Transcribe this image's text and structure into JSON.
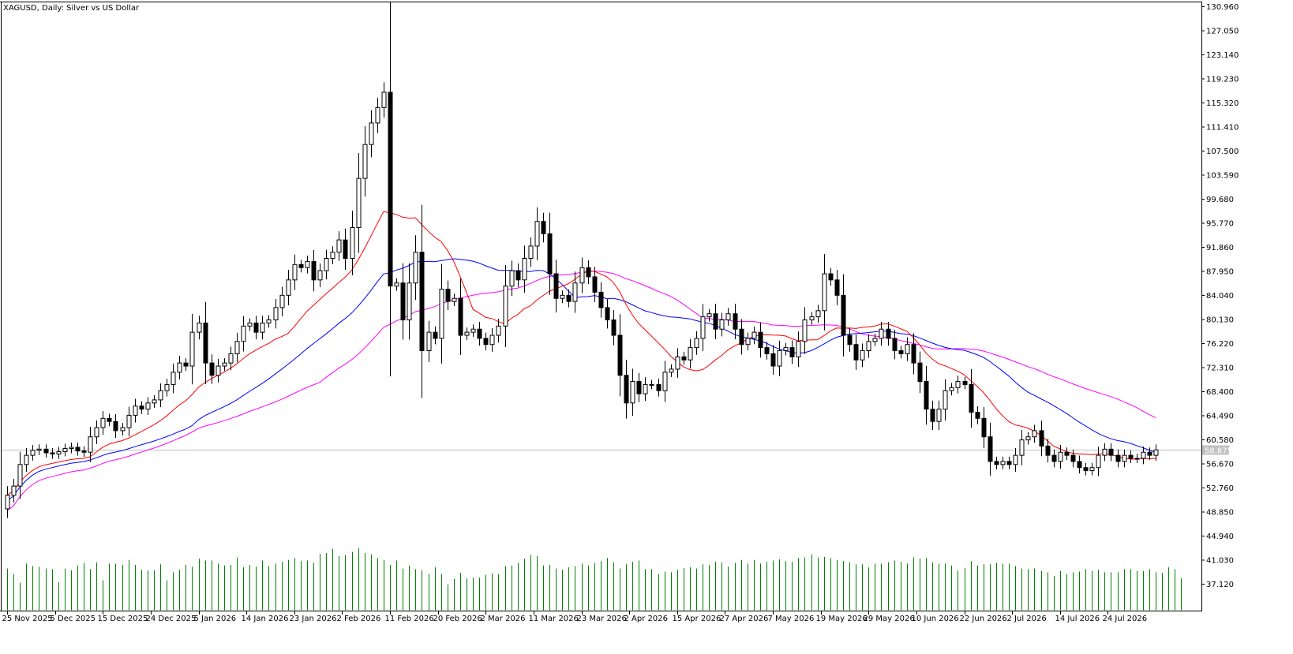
{
  "chart_data": {
    "type": "candlestick",
    "title": "XAGUSD, Daily:  Silver vs US Dollar",
    "price_ticks": [
      "130.960",
      "127.050",
      "123.140",
      "119.230",
      "115.320",
      "111.410",
      "107.500",
      "103.590",
      "99.680",
      "95.770",
      "91.860",
      "87.950",
      "84.040",
      "80.130",
      "76.220",
      "72.310",
      "68.400",
      "64.490",
      "60.580",
      "56.670",
      "52.760",
      "48.850",
      "44.940",
      "41.030",
      "37.120"
    ],
    "date_ticks": [
      "25 Nov 2025",
      "5 Dec 2025",
      "15 Dec 2025",
      "24 Dec 2025",
      "5 Jan 2026",
      "14 Jan 2026",
      "23 Jan 2026",
      "2 Feb 2026",
      "11 Feb 2026",
      "20 Feb 2026",
      "2 Mar 2026",
      "11 Mar 2026",
      "23 Mar 2026",
      "2 Apr 2026",
      "15 Apr 2026",
      "27 Apr 2026",
      "7 May 2026",
      "19 May 2026",
      "29 May 2026",
      "10 Jun 2026",
      "22 Jun 2026",
      "2 Jul 2026",
      "14 Jul 2026",
      "24 Jul 2026"
    ],
    "current_price": "58.875",
    "ylim": [
      34.0,
      131.5
    ],
    "closes": [
      51.5,
      53.0,
      56.5,
      58.0,
      58.8,
      59.0,
      58.4,
      58.2,
      58.6,
      59.1,
      59.3,
      58.7,
      58.5,
      61.0,
      62.5,
      64.0,
      63.5,
      62.0,
      62.5,
      64.5,
      66.0,
      65.5,
      66.5,
      67.0,
      68.5,
      69.5,
      71.5,
      73.0,
      72.5,
      78.0,
      79.5,
      73.0,
      71.0,
      72.5,
      73.0,
      74.5,
      76.5,
      79.0,
      79.5,
      78.0,
      79.5,
      80.0,
      82.0,
      84.0,
      86.5,
      89.0,
      88.5,
      89.5,
      86.5,
      88.0,
      90.0,
      91.0,
      93.0,
      90.0,
      95.0,
      103.0,
      108.5,
      112.0,
      114.5,
      117.0,
      85.5,
      86.0,
      80.0,
      86.0,
      91.0,
      75.0,
      78.0,
      77.0,
      85.0,
      83.0,
      83.5,
      77.5,
      78.0,
      78.5,
      77.0,
      76.0,
      77.5,
      79.0,
      85.5,
      88.0,
      86.5,
      90.0,
      92.0,
      96.0,
      94.0,
      87.5,
      83.5,
      84.0,
      83.0,
      86.0,
      88.5,
      87.0,
      84.5,
      82.0,
      80.0,
      77.5,
      71.0,
      66.5,
      70.0,
      68.0,
      69.5,
      69.5,
      68.5,
      71.5,
      72.0,
      74.0,
      73.5,
      75.5,
      77.0,
      80.5,
      81.0,
      78.5,
      80.0,
      81.0,
      78.5,
      76.0,
      77.0,
      78.0,
      75.5,
      74.5,
      72.5,
      75.0,
      75.5,
      74.0,
      76.5,
      80.0,
      80.5,
      81.5,
      87.5,
      86.5,
      84.0,
      77.5,
      76.0,
      73.5,
      75.0,
      76.5,
      77.0,
      78.5,
      77.0,
      75.0,
      74.5,
      76.0,
      73.0,
      70.0,
      65.5,
      63.5,
      65.5,
      68.5,
      69.0,
      70.0,
      69.5,
      65.0,
      64.0,
      61.0,
      57.0,
      56.5,
      57.0,
      56.5,
      58.0,
      60.5,
      61.0,
      62.0,
      59.5,
      58.0,
      57.0,
      58.5,
      58.0,
      57.0,
      56.0,
      55.5,
      56.0,
      58.0,
      59.0,
      58.0,
      57.0,
      58.0,
      57.5,
      57.5,
      58.5,
      58.0,
      58.875
    ],
    "volumes": [
      39.6,
      38.7,
      37.3,
      40.4,
      40.0,
      39.9,
      39.6,
      39.5,
      37.4,
      39.6,
      39.3,
      40.1,
      40.5,
      39.5,
      40.6,
      37.7,
      40.4,
      40.4,
      40.2,
      41.0,
      40.2,
      39.4,
      39.3,
      39.3,
      40.3,
      37.7,
      39.0,
      39.4,
      40.2,
      39.9,
      41.2,
      40.9,
      40.9,
      40.4,
      40.1,
      40.2,
      41.4,
      39.8,
      40.2,
      39.9,
      40.9,
      40.0,
      40.4,
      40.7,
      41.0,
      41.3,
      40.8,
      40.9,
      40.5,
      42.0,
      42.1,
      42.8,
      41.6,
      41.8,
      42.3,
      42.9,
      42.1,
      41.9,
      41.3,
      41.0,
      40.2,
      40.9,
      39.6,
      40.1,
      39.5,
      39.3,
      38.7,
      39.8,
      38.7,
      37.0,
      37.9,
      38.9,
      38.0,
      38.1,
      38.1,
      38.6,
      38.8,
      38.7,
      40.0,
      40.1,
      40.5,
      41.2,
      41.8,
      41.6,
      40.1,
      40.2,
      39.6,
      39.4,
      39.8,
      40.0,
      40.4,
      40.1,
      40.5,
      40.8,
      41.3,
      40.6,
      39.6,
      40.3,
      40.7,
      40.9,
      39.5,
      39.5,
      38.7,
      39.1,
      39.0,
      39.4,
      39.7,
      39.8,
      39.6,
      40.3,
      40.2,
      40.7,
      40.6,
      39.9,
      40.5,
      41.0,
      40.4,
      41.0,
      40.4,
      40.7,
      40.9,
      41.1,
      40.8,
      40.7,
      41.3,
      41.4,
      41.9,
      41.4,
      41.5,
      41.3,
      41.0,
      40.8,
      40.6,
      40.3,
      40.3,
      39.8,
      40.4,
      40.4,
      40.6,
      40.9,
      40.7,
      40.4,
      41.4,
      41.2,
      41.3,
      40.6,
      40.4,
      40.4,
      40.1,
      39.3,
      39.7,
      40.8,
      40.1,
      40.3,
      40.3,
      40.5,
      40.4,
      40.4,
      40.0,
      39.6,
      39.5,
      39.6,
      39.2,
      39.0,
      38.4,
      39.2,
      38.7,
      39.0,
      39.1,
      39.5,
      39.2,
      39.4,
      39.0,
      39.0,
      39.0,
      39.5,
      39.5,
      39.2,
      39.2,
      39.5,
      39.0,
      38.9,
      39.8,
      39.5,
      38.0
    ]
  }
}
